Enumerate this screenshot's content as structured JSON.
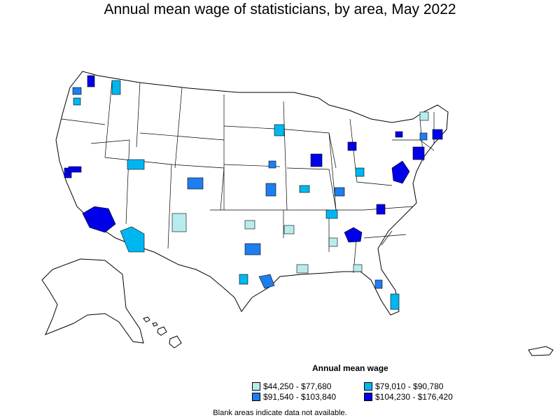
{
  "title": "Annual mean wage of statisticians, by area, May 2022",
  "legend": {
    "title": "Annual mean wage",
    "items": [
      {
        "label": "$44,250 - $77,680",
        "color": "#b8ecec"
      },
      {
        "label": "$79,010 - $90,780",
        "color": "#00b6f0"
      },
      {
        "label": "$91,540 - $103,840",
        "color": "#1e7ef0"
      },
      {
        "label": "$104,230 - $176,420",
        "color": "#0000e8"
      }
    ]
  },
  "footnote": "Blank areas indicate data not available."
}
